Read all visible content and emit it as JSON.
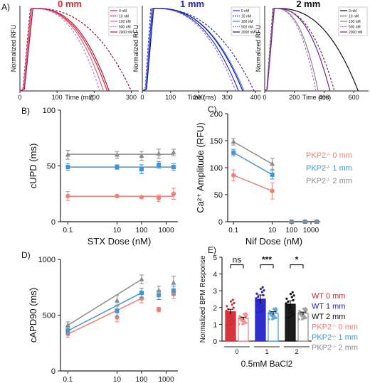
{
  "figure": {
    "panel_labels": [
      "A)",
      "B)",
      "C)",
      "D)",
      "E)"
    ],
    "colors": {
      "wt0": "#d42a35",
      "wt1": "#2424c8",
      "wt2": "#111111",
      "pkp0": "#f08078",
      "pkp1": "#3f95d8",
      "pkp2": "#8c8c8c"
    }
  },
  "chart_data": [
    {
      "id": "A1",
      "type": "line",
      "title": "0 mm",
      "xlabel": "Time (ms)",
      "ylabel": "Normalized RFU",
      "xlim": [
        0,
        320
      ],
      "ylim": [
        0,
        1
      ],
      "xticks": [
        0,
        100,
        200,
        300
      ],
      "legend": [
        "0 nM",
        "10 nM",
        "100 nM",
        "500 nM",
        "2000 nM"
      ],
      "series": [
        {
          "name": "0 nM",
          "peak": 10,
          "peak_t": 30,
          "end": 235,
          "color": "#d42a35",
          "dash": false
        },
        {
          "name": "10 nM",
          "peak": 8,
          "peak_t": 28,
          "end": 300,
          "color": "#8b1a2a",
          "dash": true
        },
        {
          "name": "100 nM",
          "peak": 11,
          "peak_t": 32,
          "end": 225,
          "color": "#e06a7a",
          "dash": false
        },
        {
          "name": "500 nM",
          "peak": 9,
          "peak_t": 30,
          "end": 215,
          "color": "#c080d0",
          "dash": true
        },
        {
          "name": "2000 nM",
          "peak": 12,
          "peak_t": 35,
          "end": 240,
          "color": "#c01040",
          "dash": false
        }
      ]
    },
    {
      "id": "A2",
      "type": "line",
      "title": "1 mm",
      "xlabel": "Time (ms)",
      "ylabel": "Normalized RFU",
      "xlim": [
        0,
        420
      ],
      "ylim": [
        0,
        1
      ],
      "xticks": [
        0,
        100,
        200,
        300,
        400
      ],
      "legend": [
        "0 nM",
        "10 nM",
        "100 nM",
        "500 nM",
        "2000 nM"
      ],
      "series": [
        {
          "name": "0 nM",
          "peak": 12,
          "peak_t": 35,
          "end": 340,
          "color": "#2a3ad0",
          "dash": false
        },
        {
          "name": "10 nM",
          "peak": 10,
          "peak_t": 30,
          "end": 395,
          "color": "#333399",
          "dash": true
        },
        {
          "name": "100 nM",
          "peak": 14,
          "peak_t": 38,
          "end": 360,
          "color": "#5a7ae0",
          "dash": false
        },
        {
          "name": "500 nM",
          "peak": 11,
          "peak_t": 32,
          "end": 330,
          "color": "#a070d0",
          "dash": true
        },
        {
          "name": "2000 nM",
          "peak": 15,
          "peak_t": 40,
          "end": 355,
          "color": "#0a1aa0",
          "dash": false
        }
      ]
    },
    {
      "id": "A3",
      "type": "line",
      "title": "2 mm",
      "xlabel": "Time (ms)",
      "ylabel": "Normalized RFU",
      "xlim": [
        0,
        700
      ],
      "ylim": [
        0,
        1
      ],
      "xticks": [
        0,
        200,
        400,
        600
      ],
      "legend": [
        "0 nM",
        "10 nM",
        "100 nM",
        "500 nM",
        "2000 nM"
      ],
      "series": [
        {
          "name": "0 nM",
          "peak": 15,
          "peak_t": 60,
          "end": 630,
          "color": "#111111",
          "dash": false
        },
        {
          "name": "10 nM",
          "peak": 14,
          "peak_t": 55,
          "end": 470,
          "color": "#444444",
          "dash": true
        },
        {
          "name": "100 nM",
          "peak": 16,
          "peak_t": 62,
          "end": 360,
          "color": "#888888",
          "dash": false
        },
        {
          "name": "500 nM",
          "peak": 15,
          "peak_t": 60,
          "end": 345,
          "color": "#b070c0",
          "dash": true
        },
        {
          "name": "2000 nM",
          "peak": 17,
          "peak_t": 65,
          "end": 440,
          "color": "#7a2090",
          "dash": false
        }
      ]
    },
    {
      "id": "B",
      "type": "scatter",
      "xlabel": "STX Dose (nM)",
      "ylabel": "cUPD (ms)",
      "xscale": "log",
      "xlim": [
        0.05,
        3000
      ],
      "ylim": [
        0,
        100
      ],
      "xticks": [
        "0.1",
        "10",
        "100",
        "1000"
      ],
      "yticks": [
        0,
        50,
        100
      ],
      "series": [
        {
          "name": "PKP2 0 mm",
          "color": "#f08078",
          "marker": "circle",
          "x": [
            0.1,
            10,
            100,
            500,
            2000
          ],
          "y": [
            23,
            23,
            22,
            21,
            25
          ],
          "err": [
            4,
            1,
            1,
            3,
            5
          ]
        },
        {
          "name": "PKP2 1 mm",
          "color": "#3f95d8",
          "marker": "square",
          "x": [
            0.1,
            10,
            100,
            500,
            2000
          ],
          "y": [
            49,
            49,
            47,
            51,
            49
          ],
          "err": [
            3,
            2,
            4,
            3,
            3
          ]
        },
        {
          "name": "PKP2 2 mm",
          "color": "#8c8c8c",
          "marker": "triangle",
          "x": [
            0.1,
            10,
            100,
            500,
            2000
          ],
          "y": [
            60,
            60,
            59,
            61,
            62
          ],
          "err": [
            4,
            3,
            4,
            4,
            3
          ]
        }
      ]
    },
    {
      "id": "C",
      "type": "scatter",
      "xlabel": "Nif Dose (nM)",
      "ylabel": "Ca²⁺ Amplitude (RFU)",
      "xscale": "log",
      "xlim": [
        0.05,
        3000
      ],
      "ylim": [
        0,
        200
      ],
      "xticks": [
        "0.1",
        "10",
        "100",
        "1000"
      ],
      "yticks": [
        0,
        50,
        100,
        150,
        200
      ],
      "legend_position": "right",
      "series": [
        {
          "name": "PKP2 0 mm",
          "color": "#f08078",
          "marker": "circle",
          "x": [
            0.1,
            10,
            100,
            500,
            2000
          ],
          "y": [
            86,
            57,
            0,
            0,
            0
          ],
          "err": [
            10,
            15,
            0,
            0,
            0
          ]
        },
        {
          "name": "PKP2 1 mm",
          "color": "#3f95d8",
          "marker": "square",
          "x": [
            0.1,
            10,
            100,
            500,
            2000
          ],
          "y": [
            128,
            87,
            0,
            0,
            0
          ],
          "err": [
            6,
            8,
            0,
            0,
            0
          ]
        },
        {
          "name": "PKP2 2 mm",
          "color": "#8c8c8c",
          "marker": "triangle",
          "x": [
            0.1,
            10,
            100,
            500,
            2000
          ],
          "y": [
            148,
            107,
            0,
            0,
            0
          ],
          "err": [
            6,
            10,
            0,
            0,
            0
          ]
        }
      ]
    },
    {
      "id": "D",
      "type": "scatter",
      "xlabel": "E4031 Dose (nM)",
      "ylabel": "cAPD90 (ms)",
      "xscale": "log",
      "xlim": [
        0.05,
        3000
      ],
      "ylim": [
        0,
        1000
      ],
      "xticks": [
        "0.1",
        "10",
        "100",
        "1000"
      ],
      "yticks": [
        0,
        500,
        1000
      ],
      "series": [
        {
          "name": "PKP2 0 mm",
          "color": "#f08078",
          "marker": "circle",
          "x": [
            0.1,
            10,
            100,
            500,
            2000
          ],
          "y": [
            330,
            480,
            650,
            550,
            690
          ],
          "err": [
            30,
            40,
            40,
            20,
            40
          ]
        },
        {
          "name": "PKP2 1 mm",
          "color": "#3f95d8",
          "marker": "square",
          "x": [
            0.1,
            10,
            100,
            500,
            2000
          ],
          "y": [
            360,
            540,
            700,
            680,
            720
          ],
          "err": [
            30,
            50,
            40,
            40,
            40
          ]
        },
        {
          "name": "PKP2 2 mm",
          "color": "#8c8c8c",
          "marker": "triangle",
          "x": [
            0.1,
            10,
            100,
            500,
            2000
          ],
          "y": [
            410,
            630,
            820,
            720,
            790
          ],
          "err": [
            30,
            50,
            40,
            40,
            60
          ]
        }
      ]
    },
    {
      "id": "E",
      "type": "bar",
      "xlabel": "0.5mM BaCl2",
      "ylabel": "Normalized BPM Response",
      "ylim": [
        0,
        5
      ],
      "yticks": [
        0,
        1,
        2,
        3,
        4,
        5
      ],
      "categories": [
        "0",
        "1",
        "2"
      ],
      "significance": [
        "ns",
        "***",
        "*"
      ],
      "legend": [
        "WT 0 mm",
        "WT 1 mm",
        "WT 2 mm",
        "PKP2-/- 0 mm",
        "PKP2-/- 1 mm",
        "PKP2-/- 2 mm"
      ],
      "series": [
        {
          "name": "WT",
          "values": [
            1.75,
            2.5,
            2.2
          ],
          "err": [
            0.15,
            0.25,
            0.2
          ],
          "colors": [
            "#d42a35",
            "#2424c8",
            "#111111"
          ]
        },
        {
          "name": "PKP2-/-",
          "values": [
            1.35,
            1.65,
            1.65
          ],
          "err": [
            0.08,
            0.1,
            0.08
          ],
          "colors": [
            "#f08078",
            "#3f95d8",
            "#8c8c8c"
          ]
        }
      ]
    }
  ],
  "legends": {
    "C": [
      {
        "prefix": "PKP2",
        "sup": "-/-",
        "suffix": " 0 mm",
        "color": "#f08078"
      },
      {
        "prefix": "PKP2",
        "sup": "-/-",
        "suffix": " 1 mm",
        "color": "#3f95d8"
      },
      {
        "prefix": "PKP2",
        "sup": "-/-",
        "suffix": " 2 mm",
        "color": "#8c8c8c"
      }
    ],
    "E": [
      {
        "prefix": "WT 0 mm",
        "sup": "",
        "suffix": "",
        "color": "#d42a35"
      },
      {
        "prefix": "WT 1 mm",
        "sup": "",
        "suffix": "",
        "color": "#2424c8"
      },
      {
        "prefix": "WT 2 mm",
        "sup": "",
        "suffix": "",
        "color": "#111111"
      },
      {
        "prefix": "PKP2",
        "sup": "-/-",
        "suffix": " 0 mm",
        "color": "#f08078"
      },
      {
        "prefix": "PKP2",
        "sup": "-/-",
        "suffix": " 1 mm",
        "color": "#3f95d8"
      },
      {
        "prefix": "PKP2",
        "sup": "-/-",
        "suffix": " 2 mm",
        "color": "#8c8c8c"
      }
    ]
  }
}
